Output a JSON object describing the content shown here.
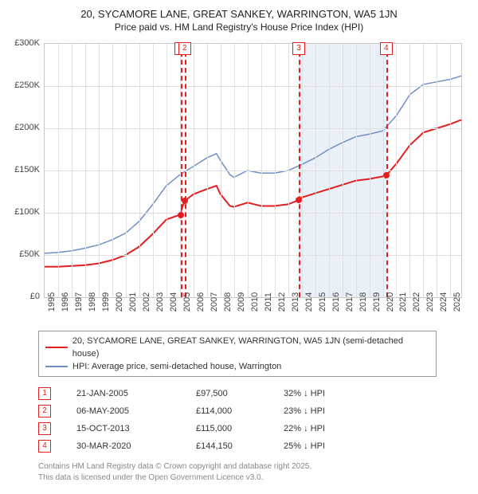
{
  "title": "20, SYCAMORE LANE, GREAT SANKEY, WARRINGTON, WA5 1JN",
  "subtitle": "Price paid vs. HM Land Registry's House Price Index (HPI)",
  "chart": {
    "type": "line",
    "background_color": "#ffffff",
    "grid_color": "#e0e0e0",
    "plot_border_color": "#c8c8c8",
    "shade": {
      "start_year": 2013.8,
      "end_year": 2020.25,
      "fill": "#eaf0f8"
    },
    "x": {
      "min": 1995,
      "max": 2025.8,
      "ticks": [
        1995,
        1996,
        1997,
        1998,
        1999,
        2000,
        2001,
        2002,
        2003,
        2004,
        2005,
        2006,
        2007,
        2008,
        2009,
        2010,
        2011,
        2012,
        2013,
        2014,
        2015,
        2016,
        2017,
        2018,
        2019,
        2020,
        2021,
        2022,
        2023,
        2024,
        2025
      ],
      "label_fontsize": 11
    },
    "y": {
      "min": 0,
      "max": 300000,
      "ticks": [
        0,
        50000,
        100000,
        150000,
        200000,
        250000,
        300000
      ],
      "tick_labels": [
        "£0",
        "£50K",
        "£100K",
        "£150K",
        "£200K",
        "£250K",
        "£300K"
      ],
      "label_fontsize": 11
    },
    "series": [
      {
        "id": "property",
        "label": "20, SYCAMORE LANE, GREAT SANKEY, WARRINGTON, WA5 1JN (semi-detached house)",
        "color": "#e22020",
        "line_width": 2,
        "points": [
          [
            1995,
            36000
          ],
          [
            1996,
            36000
          ],
          [
            1997,
            37000
          ],
          [
            1998,
            38000
          ],
          [
            1999,
            40000
          ],
          [
            2000,
            44000
          ],
          [
            2001,
            50000
          ],
          [
            2002,
            60000
          ],
          [
            2003,
            75000
          ],
          [
            2004,
            92000
          ],
          [
            2005,
            97500
          ],
          [
            2005.35,
            114000
          ],
          [
            2006,
            122000
          ],
          [
            2007,
            128000
          ],
          [
            2007.7,
            132000
          ],
          [
            2008,
            122000
          ],
          [
            2008.7,
            108000
          ],
          [
            2009,
            107000
          ],
          [
            2010,
            112000
          ],
          [
            2011,
            108000
          ],
          [
            2012,
            108000
          ],
          [
            2013,
            110000
          ],
          [
            2013.8,
            115000
          ],
          [
            2014,
            118000
          ],
          [
            2015,
            123000
          ],
          [
            2016,
            128000
          ],
          [
            2017,
            133000
          ],
          [
            2018,
            138000
          ],
          [
            2019,
            140000
          ],
          [
            2020,
            143000
          ],
          [
            2020.25,
            144150
          ],
          [
            2021,
            158000
          ],
          [
            2022,
            180000
          ],
          [
            2023,
            195000
          ],
          [
            2024,
            200000
          ],
          [
            2025,
            205000
          ],
          [
            2025.8,
            210000
          ]
        ]
      },
      {
        "id": "hpi",
        "label": "HPI: Average price, semi-detached house, Warrington",
        "color": "#6f8fc6",
        "line_width": 1.5,
        "points": [
          [
            1995,
            52000
          ],
          [
            1996,
            53000
          ],
          [
            1997,
            55000
          ],
          [
            1998,
            58000
          ],
          [
            1999,
            62000
          ],
          [
            2000,
            68000
          ],
          [
            2001,
            76000
          ],
          [
            2002,
            90000
          ],
          [
            2003,
            110000
          ],
          [
            2004,
            132000
          ],
          [
            2005,
            145000
          ],
          [
            2006,
            155000
          ],
          [
            2007,
            165000
          ],
          [
            2007.7,
            170000
          ],
          [
            2008,
            162000
          ],
          [
            2008.7,
            145000
          ],
          [
            2009,
            142000
          ],
          [
            2010,
            150000
          ],
          [
            2011,
            147000
          ],
          [
            2012,
            147000
          ],
          [
            2013,
            150000
          ],
          [
            2014,
            157000
          ],
          [
            2015,
            165000
          ],
          [
            2016,
            175000
          ],
          [
            2017,
            183000
          ],
          [
            2018,
            190000
          ],
          [
            2019,
            193000
          ],
          [
            2020,
            197000
          ],
          [
            2021,
            215000
          ],
          [
            2022,
            240000
          ],
          [
            2023,
            252000
          ],
          [
            2024,
            255000
          ],
          [
            2025,
            258000
          ],
          [
            2025.8,
            262000
          ]
        ]
      }
    ],
    "events": [
      {
        "n": "1",
        "year": 2005.06,
        "price_y": 97500
      },
      {
        "n": "2",
        "year": 2005.35,
        "price_y": 114000
      },
      {
        "n": "3",
        "year": 2013.79,
        "price_y": 115000
      },
      {
        "n": "4",
        "year": 2020.25,
        "price_y": 144150
      }
    ]
  },
  "legend": {
    "items": [
      {
        "color": "#e22020",
        "width": 2,
        "label_path": "chart.series.0.label"
      },
      {
        "color": "#6f8fc6",
        "width": 2,
        "label_path": "chart.series.1.label"
      }
    ]
  },
  "events_table": [
    {
      "n": "1",
      "date": "21-JAN-2005",
      "price": "£97,500",
      "delta": "32% ↓ HPI"
    },
    {
      "n": "2",
      "date": "06-MAY-2005",
      "price": "£114,000",
      "delta": "23% ↓ HPI"
    },
    {
      "n": "3",
      "date": "15-OCT-2013",
      "price": "£115,000",
      "delta": "22% ↓ HPI"
    },
    {
      "n": "4",
      "date": "30-MAR-2020",
      "price": "£144,150",
      "delta": "25% ↓ HPI"
    }
  ],
  "footer": {
    "line1": "Contains HM Land Registry data © Crown copyright and database right 2025.",
    "line2": "This data is licensed under the Open Government Licence v3.0."
  }
}
